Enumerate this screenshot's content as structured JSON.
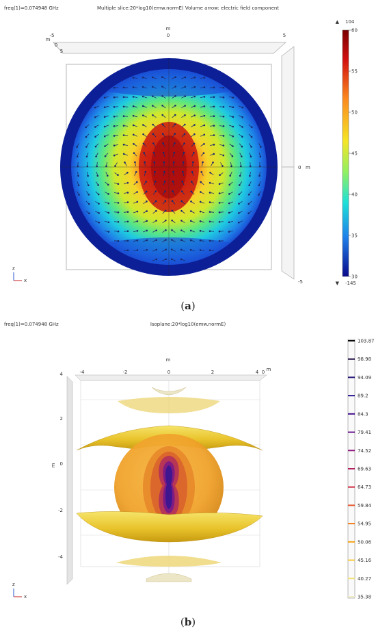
{
  "panel_a": {
    "freq": "freq(1)=0.074948 GHz",
    "title": "Multiple slice:20*log10(emw.normE) Volume arrow: electric field component",
    "axis_unit": "m",
    "top_ticks": [
      "-5",
      "0",
      "5"
    ],
    "side_ticks": [
      "-5",
      "0",
      "5"
    ],
    "right_ticks": [
      "0",
      "-5"
    ],
    "right_unit": "m",
    "colorbar": {
      "max_marker": "104",
      "min_marker": "-145",
      "ticks": [
        "60",
        "55",
        "50",
        "45",
        "40",
        "35",
        "30"
      ]
    },
    "triad": {
      "z": "z",
      "x": "x"
    },
    "caption_letter": "a"
  },
  "panel_b": {
    "freq": "freq(1)=0.074948 GHz",
    "title": "Isoplane:20*log10(emw.normE)",
    "axis_unit": "m",
    "top_ticks": [
      "-4",
      "-2",
      "0",
      "2",
      "4"
    ],
    "top_extra": "0",
    "side_ticks": [
      "4",
      "2",
      "0",
      "-2",
      "-4"
    ],
    "colorbar_levels": [
      {
        "v": "103.87",
        "c": "#0a0a0a"
      },
      {
        "v": "98.98",
        "c": "#1a0a40"
      },
      {
        "v": "94.09",
        "c": "#1e0f73"
      },
      {
        "v": "89.2",
        "c": "#2a128e"
      },
      {
        "v": "84.3",
        "c": "#45148f"
      },
      {
        "v": "79.41",
        "c": "#6a168d"
      },
      {
        "v": "74.52",
        "c": "#8f1a7f"
      },
      {
        "v": "69.63",
        "c": "#b0205d"
      },
      {
        "v": "64.73",
        "c": "#cf3046"
      },
      {
        "v": "59.84",
        "c": "#e6522a"
      },
      {
        "v": "54.95",
        "c": "#f07a18"
      },
      {
        "v": "50.06",
        "c": "#f5a418"
      },
      {
        "v": "45.16",
        "c": "#f5c938"
      },
      {
        "v": "40.27",
        "c": "#f3e27a"
      },
      {
        "v": "35.38",
        "c": "#f2ecc8"
      }
    ],
    "triad": {
      "z": "z",
      "x": "x"
    },
    "caption_letter": "b"
  }
}
